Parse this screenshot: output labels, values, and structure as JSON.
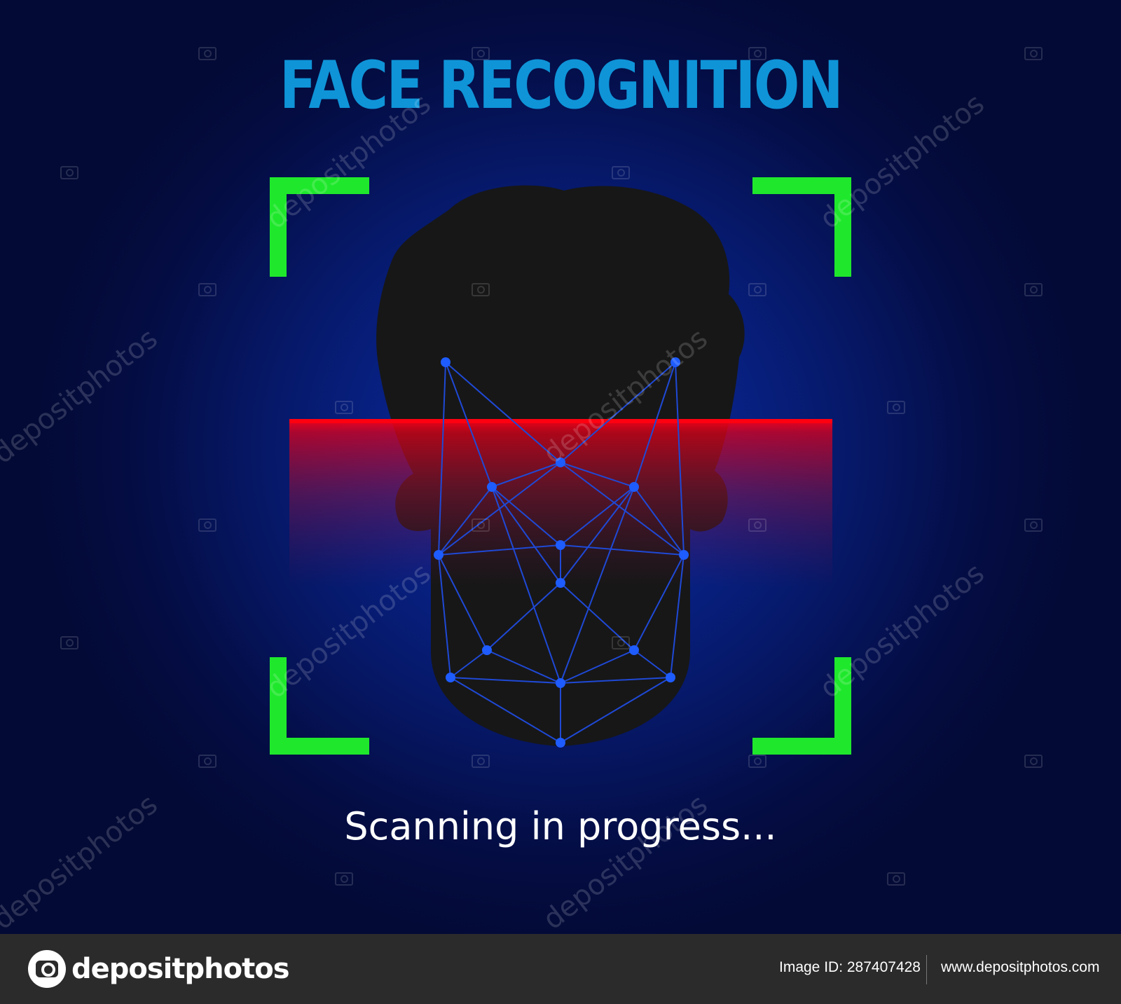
{
  "title": "FACE RECOGNITION",
  "status_text": "Scanning in progress...",
  "watermark_text": "depositphotos",
  "footer": {
    "logo_text": "depositphotos",
    "image_id_label": "Image ID: 287407428",
    "site_url": "www.depositphotos.com"
  },
  "colors": {
    "title": "#0f94d8",
    "frame_brackets": "#1fe82c",
    "head_silhouette": "#171717",
    "scan_band": "#e0001a",
    "mesh_lines": "#1f49d6",
    "mesh_nodes": "#1e5cff",
    "status_text": "#ffffff",
    "footer_bg": "#2b2b2b"
  },
  "icons": {
    "watermark_camera": "camera-icon",
    "footer_logo": "depositphotos-logo-icon"
  }
}
